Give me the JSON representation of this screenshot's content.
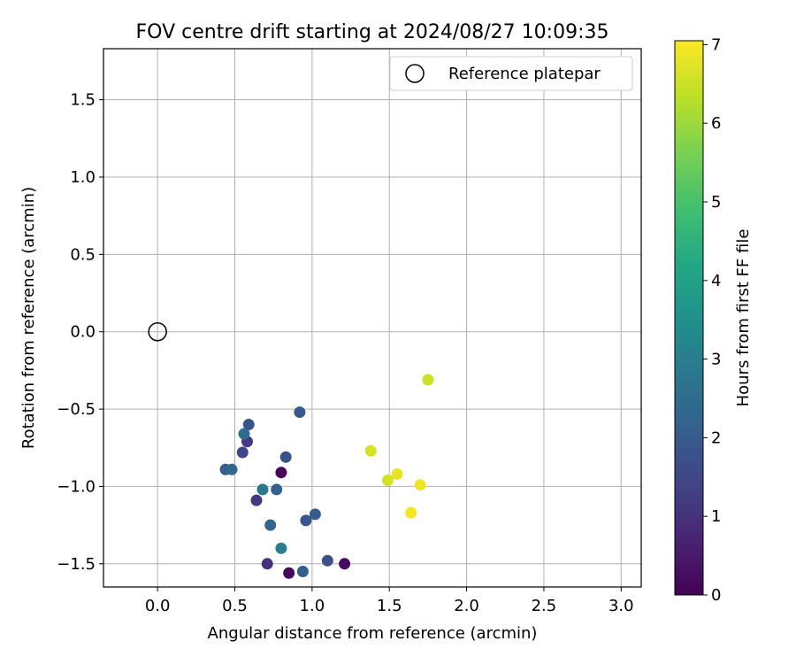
{
  "chart_data": {
    "type": "scatter",
    "title": "FOV centre drift starting at 2024/08/27 10:09:35",
    "xlabel": "Angular distance from reference (arcmin)",
    "ylabel": "Rotation from reference (arcmin)",
    "xlim": [
      -0.35,
      3.13
    ],
    "ylim": [
      -1.65,
      1.83
    ],
    "xticks": [
      0.0,
      0.5,
      1.0,
      1.5,
      2.0,
      2.5,
      3.0
    ],
    "xtick_labels": [
      "0.0",
      "0.5",
      "1.0",
      "1.5",
      "2.0",
      "2.5",
      "3.0"
    ],
    "yticks": [
      -1.5,
      -1.0,
      -0.5,
      0.0,
      0.5,
      1.0,
      1.5
    ],
    "ytick_labels": [
      "−1.5",
      "−1.0",
      "−0.5",
      "0.0",
      "0.5",
      "1.0",
      "1.5"
    ],
    "grid": true,
    "legend": {
      "placement": "upper right",
      "entries": [
        "Reference platepar"
      ]
    },
    "reference_point": {
      "x": 0.0,
      "y": 0.0
    },
    "colorbar": {
      "label": "Hours from first FF file",
      "colormap": "viridis",
      "range": [
        0,
        7.05
      ],
      "ticks": [
        0,
        1,
        2,
        3,
        4,
        5,
        6,
        7
      ],
      "tick_labels": [
        "0",
        "1",
        "2",
        "3",
        "4",
        "5",
        "6",
        "7"
      ]
    },
    "points": [
      {
        "x": 0.8,
        "y": -0.91,
        "hours": 0.1
      },
      {
        "x": 0.85,
        "y": -1.56,
        "hours": 0.15
      },
      {
        "x": 1.21,
        "y": -1.5,
        "hours": 0.2
      },
      {
        "x": 0.71,
        "y": -1.5,
        "hours": 1.0
      },
      {
        "x": 0.64,
        "y": -1.09,
        "hours": 1.1
      },
      {
        "x": 0.58,
        "y": -0.71,
        "hours": 1.2
      },
      {
        "x": 0.55,
        "y": -0.78,
        "hours": 1.5
      },
      {
        "x": 1.1,
        "y": -1.48,
        "hours": 1.7
      },
      {
        "x": 0.59,
        "y": -0.6,
        "hours": 1.8
      },
      {
        "x": 0.83,
        "y": -0.81,
        "hours": 1.8
      },
      {
        "x": 0.96,
        "y": -1.22,
        "hours": 1.9
      },
      {
        "x": 0.44,
        "y": -0.89,
        "hours": 2.0
      },
      {
        "x": 0.92,
        "y": -0.52,
        "hours": 2.0
      },
      {
        "x": 1.02,
        "y": -1.18,
        "hours": 2.1
      },
      {
        "x": 0.94,
        "y": -1.55,
        "hours": 2.1
      },
      {
        "x": 0.77,
        "y": -1.02,
        "hours": 2.2
      },
      {
        "x": 0.48,
        "y": -0.89,
        "hours": 2.3
      },
      {
        "x": 0.73,
        "y": -1.25,
        "hours": 2.3
      },
      {
        "x": 0.56,
        "y": -0.66,
        "hours": 2.5
      },
      {
        "x": 0.68,
        "y": -1.02,
        "hours": 2.8
      },
      {
        "x": 0.8,
        "y": -1.4,
        "hours": 3.0
      },
      {
        "x": 1.75,
        "y": -0.31,
        "hours": 6.5
      },
      {
        "x": 1.38,
        "y": -0.77,
        "hours": 6.6
      },
      {
        "x": 1.49,
        "y": -0.96,
        "hours": 6.6
      },
      {
        "x": 1.55,
        "y": -0.92,
        "hours": 6.8
      },
      {
        "x": 1.7,
        "y": -0.99,
        "hours": 6.9
      },
      {
        "x": 1.64,
        "y": -1.17,
        "hours": 7.0
      }
    ]
  }
}
